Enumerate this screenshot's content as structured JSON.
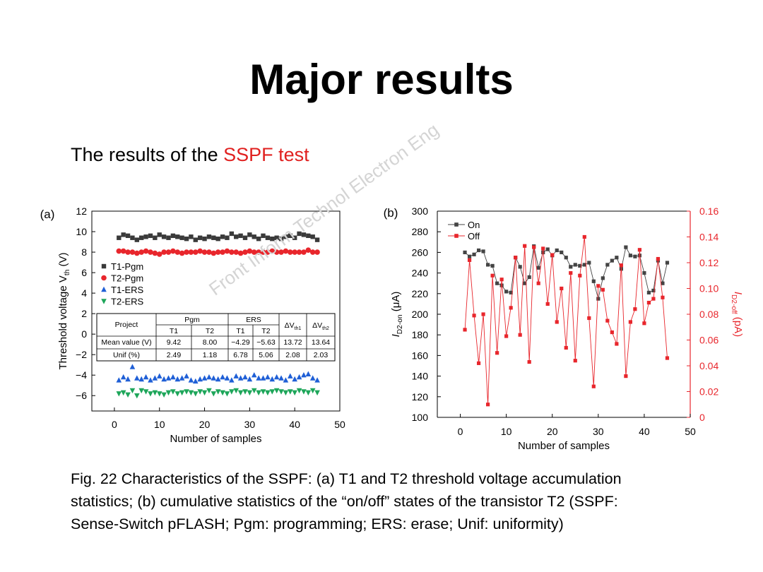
{
  "slide": {
    "title": "Major results",
    "subtitle_prefix": "The results of the ",
    "subtitle_accent": "SSPF test",
    "watermark": "Front Inform Technol Electron Eng",
    "caption_line1": "Fig. 22 Characteristics of the SSPF: (a) T1 and T2 threshold voltage accumulation",
    "caption_line2": "statistics; (b) cumulative statistics of the “on/off” states of the transistor T2 (SSPF:",
    "caption_line3": "Sense-Switch pFLASH; Pgm: programming; ERS: erase; Unif: uniformity)"
  },
  "colors": {
    "accent": "#e0201f",
    "t1pgm": "#3a3a3a",
    "t2pgm": "#e8262c",
    "t1ers": "#1f5fd6",
    "t2ers": "#1ea65a",
    "on": "#444444",
    "off": "#e8262c"
  },
  "chart_data": [
    {
      "type": "scatter",
      "panel_label": "(a)",
      "xlabel": "Number of samples",
      "ylabel": "Threshold voltage V",
      "ylabel_sub": "th",
      "ylabel_unit": " (V)",
      "xlim": [
        -5,
        50
      ],
      "ylim": [
        -7.5,
        12
      ],
      "xticks": [
        0,
        10,
        20,
        30,
        40,
        50
      ],
      "yticks": [
        -6,
        -4,
        -2,
        0,
        2,
        4,
        6,
        8,
        10,
        12
      ],
      "legend": "left",
      "series": [
        {
          "name": "T1-Pgm",
          "marker": "square",
          "color": "#3a3a3a",
          "x": [
            1,
            2,
            3,
            4,
            5,
            6,
            7,
            8,
            9,
            10,
            11,
            12,
            13,
            14,
            15,
            16,
            17,
            18,
            19,
            20,
            21,
            22,
            23,
            24,
            25,
            26,
            27,
            28,
            29,
            30,
            31,
            32,
            33,
            34,
            35,
            36,
            37,
            38,
            39,
            40,
            41,
            42,
            43,
            44,
            45
          ],
          "y": [
            9.4,
            9.7,
            9.6,
            9.4,
            9.2,
            9.4,
            9.5,
            9.6,
            9.4,
            9.7,
            9.5,
            9.4,
            9.6,
            9.5,
            9.4,
            9.3,
            9.5,
            9.2,
            9.4,
            9.3,
            9.5,
            9.4,
            9.3,
            9.5,
            9.4,
            9.8,
            9.5,
            9.6,
            9.4,
            9.7,
            9.5,
            9.3,
            9.6,
            9.4,
            9.3,
            9.4,
            9.3,
            9.5,
            9.6,
            9.4,
            9.8,
            9.7,
            9.6,
            9.5,
            9.2
          ]
        },
        {
          "name": "T2-Pgm",
          "marker": "circle",
          "color": "#e8262c",
          "x": [
            1,
            2,
            3,
            4,
            5,
            6,
            7,
            8,
            9,
            10,
            11,
            12,
            13,
            14,
            15,
            16,
            17,
            18,
            19,
            20,
            21,
            22,
            23,
            24,
            25,
            26,
            27,
            28,
            29,
            30,
            31,
            32,
            33,
            34,
            35,
            36,
            37,
            38,
            39,
            40,
            41,
            42,
            43,
            44,
            45
          ],
          "y": [
            8.1,
            8.1,
            8.0,
            8.0,
            7.9,
            8.0,
            8.1,
            8.0,
            7.9,
            7.8,
            8.0,
            8.0,
            8.1,
            8.0,
            7.9,
            8.0,
            8.0,
            8.0,
            8.1,
            8.0,
            8.0,
            7.9,
            8.0,
            8.0,
            8.1,
            8.0,
            8.0,
            7.9,
            8.0,
            8.1,
            8.0,
            8.0,
            8.0,
            8.0,
            8.1,
            8.0,
            8.0,
            8.1,
            8.0,
            8.0,
            8.0,
            8.0,
            8.2,
            8.0,
            8.0
          ]
        },
        {
          "name": "T1-ERS",
          "marker": "triangle-up",
          "color": "#1f5fd6",
          "x": [
            1,
            2,
            3,
            4,
            5,
            6,
            7,
            8,
            9,
            10,
            11,
            12,
            13,
            14,
            15,
            16,
            17,
            18,
            19,
            20,
            21,
            22,
            23,
            24,
            25,
            26,
            27,
            28,
            29,
            30,
            31,
            32,
            33,
            34,
            35,
            36,
            37,
            38,
            39,
            40,
            41,
            42,
            43,
            44,
            45
          ],
          "y": [
            -4.5,
            -4.2,
            -4.4,
            -3.2,
            -4.3,
            -4.4,
            -4.2,
            -4.5,
            -4.3,
            -4.1,
            -4.4,
            -4.3,
            -4.2,
            -4.4,
            -4.3,
            -4.1,
            -4.5,
            -4.6,
            -4.4,
            -4.3,
            -4.2,
            -4.3,
            -4.4,
            -4.2,
            -4.3,
            -4.5,
            -4.1,
            -4.3,
            -4.2,
            -4.4,
            -4.0,
            -4.3,
            -4.3,
            -4.2,
            -4.4,
            -4.2,
            -4.3,
            -4.5,
            -4.1,
            -4.4,
            -4.2,
            -4.0,
            -3.9,
            -4.3,
            -4.5
          ]
        },
        {
          "name": "T2-ERS",
          "marker": "triangle-down",
          "color": "#1ea65a",
          "x": [
            1,
            2,
            3,
            4,
            5,
            6,
            7,
            8,
            9,
            10,
            11,
            12,
            13,
            14,
            15,
            16,
            17,
            18,
            19,
            20,
            21,
            22,
            23,
            24,
            25,
            26,
            27,
            28,
            29,
            30,
            31,
            32,
            33,
            34,
            35,
            36,
            37,
            38,
            39,
            40,
            41,
            42,
            43,
            44,
            45
          ],
          "y": [
            -5.8,
            -5.7,
            -5.9,
            -5.5,
            -6.0,
            -5.5,
            -5.6,
            -5.8,
            -5.7,
            -5.8,
            -5.9,
            -5.7,
            -5.6,
            -5.8,
            -5.7,
            -5.6,
            -5.7,
            -5.8,
            -5.6,
            -5.7,
            -5.5,
            -5.8,
            -5.6,
            -5.7,
            -5.8,
            -5.6,
            -5.5,
            -5.7,
            -5.6,
            -5.7,
            -5.5,
            -5.7,
            -5.6,
            -5.7,
            -5.6,
            -5.5,
            -5.6,
            -5.7,
            -5.6,
            -5.7,
            -5.5,
            -5.6,
            -5.7,
            -5.5,
            -5.7
          ]
        }
      ],
      "table": {
        "header_project": "Project",
        "header_pgm": "Pgm",
        "header_ers": "ERS",
        "header_dv1": "ΔV",
        "header_dv1_sub": "th1",
        "header_dv2": "ΔV",
        "header_dv2_sub": "th2",
        "sub_t1": "T1",
        "sub_t2": "T2",
        "sub_t1b": "T1",
        "sub_t2b": "T2",
        "rows": [
          {
            "label": "Mean value (V)",
            "cells": [
              "9.42",
              "8.00",
              "−4.29",
              "−5.63",
              "13.72",
              "13.64"
            ]
          },
          {
            "label": "Unif (%)",
            "cells": [
              "2.49",
              "1.18",
              "6.78",
              "5.06",
              "2.08",
              "2.03"
            ]
          }
        ]
      }
    },
    {
      "type": "line",
      "panel_label": "(b)",
      "xlabel": "Number of samples",
      "ylabel_left": "I",
      "ylabel_left_sub": "D2-on",
      "ylabel_left_unit": " (μA)",
      "ylabel_right": "I",
      "ylabel_right_sub": "D2-off",
      "ylabel_right_unit": " (pA)",
      "xlim": [
        -5,
        50
      ],
      "ylim_left": [
        100,
        300
      ],
      "ylim_right": [
        0,
        0.16
      ],
      "xticks": [
        0,
        10,
        20,
        30,
        40,
        50
      ],
      "yticks_left": [
        100,
        120,
        140,
        160,
        180,
        200,
        220,
        240,
        260,
        280,
        300
      ],
      "yticks_right": [
        "0",
        "0.02",
        "0.04",
        "0.06",
        "0.08",
        "0.10",
        "0.12",
        "0.14",
        "0.16"
      ],
      "legend": "top-left",
      "series": [
        {
          "name": "On",
          "axis": "left",
          "marker": "square",
          "color": "#444444",
          "x": [
            1,
            2,
            3,
            4,
            5,
            6,
            7,
            8,
            9,
            10,
            11,
            12,
            13,
            14,
            15,
            16,
            17,
            18,
            19,
            20,
            21,
            22,
            23,
            24,
            25,
            26,
            27,
            28,
            29,
            30,
            31,
            32,
            33,
            34,
            35,
            36,
            37,
            38,
            39,
            40,
            41,
            42,
            43,
            44,
            45
          ],
          "y": [
            260,
            256,
            258,
            262,
            261,
            248,
            247,
            230,
            228,
            222,
            221,
            255,
            246,
            230,
            236,
            266,
            245,
            260,
            263,
            257,
            262,
            260,
            255,
            246,
            248,
            247,
            248,
            250,
            232,
            215,
            235,
            248,
            252,
            255,
            244,
            265,
            257,
            256,
            257,
            240,
            221,
            223,
            252,
            230,
            250
          ]
        },
        {
          "name": "Off",
          "axis": "right",
          "marker": "square",
          "color": "#e8262c",
          "x": [
            1,
            2,
            3,
            4,
            5,
            6,
            7,
            8,
            9,
            10,
            11,
            12,
            13,
            14,
            15,
            16,
            17,
            18,
            19,
            20,
            21,
            22,
            23,
            24,
            25,
            26,
            27,
            28,
            29,
            30,
            31,
            32,
            33,
            34,
            35,
            36,
            37,
            38,
            39,
            40,
            41,
            42,
            43,
            44,
            45
          ],
          "y": [
            0.068,
            0.122,
            0.079,
            0.042,
            0.08,
            0.01,
            0.11,
            0.05,
            0.107,
            0.063,
            0.085,
            0.124,
            0.064,
            0.133,
            0.043,
            0.132,
            0.104,
            0.131,
            0.088,
            0.126,
            0.074,
            0.1,
            0.054,
            0.112,
            0.044,
            0.11,
            0.14,
            0.077,
            0.024,
            0.102,
            0.099,
            0.075,
            0.066,
            0.057,
            0.118,
            0.032,
            0.074,
            0.084,
            0.13,
            0.073,
            0.089,
            0.092,
            0.123,
            0.093,
            0.046
          ]
        }
      ]
    }
  ]
}
